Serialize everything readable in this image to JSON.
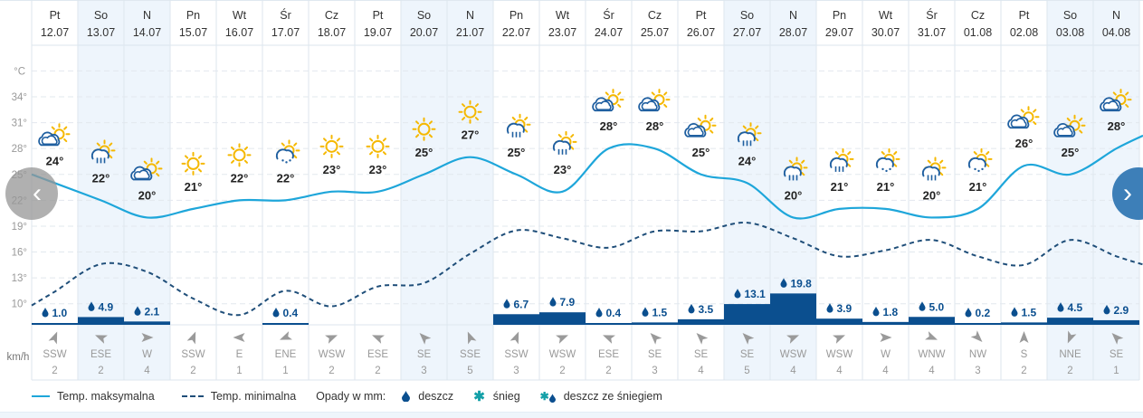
{
  "days": [
    {
      "dow": "Pt",
      "date": "12.07",
      "max": 24,
      "min": 11.4,
      "icon": "partly-cloudy",
      "precip": 1.0,
      "wind_dir": "SSW",
      "wind_speed": 2,
      "weekend": false
    },
    {
      "dow": "So",
      "date": "13.07",
      "max": 22,
      "min": 14.6,
      "icon": "rain-sun",
      "precip": 4.9,
      "wind_dir": "ESE",
      "wind_speed": 2,
      "weekend": true
    },
    {
      "dow": "N",
      "date": "14.07",
      "max": 20,
      "min": 13.7,
      "icon": "partly-cloudy",
      "precip": 2.1,
      "wind_dir": "W",
      "wind_speed": 4,
      "weekend": true
    },
    {
      "dow": "Pn",
      "date": "15.07",
      "max": 21,
      "min": 10.6,
      "icon": "sunny",
      "precip": null,
      "wind_dir": "SSW",
      "wind_speed": 2,
      "weekend": false
    },
    {
      "dow": "Wt",
      "date": "16.07",
      "max": 22,
      "min": 8.7,
      "icon": "sunny",
      "precip": null,
      "wind_dir": "E",
      "wind_speed": 1,
      "weekend": false
    },
    {
      "dow": "Śr",
      "date": "17.07",
      "max": 22,
      "min": 11.5,
      "icon": "showers-sun",
      "precip": 0.4,
      "wind_dir": "ENE",
      "wind_speed": 1,
      "weekend": false
    },
    {
      "dow": "Cz",
      "date": "18.07",
      "max": 23,
      "min": 9.7,
      "icon": "sunny",
      "precip": null,
      "wind_dir": "WSW",
      "wind_speed": 2,
      "weekend": false
    },
    {
      "dow": "Pt",
      "date": "19.07",
      "max": 23,
      "min": 12.0,
      "icon": "sunny",
      "precip": null,
      "wind_dir": "ESE",
      "wind_speed": 2,
      "weekend": false
    },
    {
      "dow": "So",
      "date": "20.07",
      "max": 25,
      "min": 12.4,
      "icon": "sunny",
      "precip": null,
      "wind_dir": "SE",
      "wind_speed": 3,
      "weekend": true
    },
    {
      "dow": "N",
      "date": "21.07",
      "max": 27,
      "min": 15.8,
      "icon": "sunny",
      "precip": null,
      "wind_dir": "SSE",
      "wind_speed": 5,
      "weekend": true
    },
    {
      "dow": "Pn",
      "date": "22.07",
      "max": 25,
      "min": 18.5,
      "icon": "rain-sun",
      "precip": 6.7,
      "wind_dir": "SSW",
      "wind_speed": 3,
      "weekend": false
    },
    {
      "dow": "Wt",
      "date": "23.07",
      "max": 23,
      "min": 17.6,
      "icon": "rain-sun",
      "precip": 7.9,
      "wind_dir": "WSW",
      "wind_speed": 2,
      "weekend": false
    },
    {
      "dow": "Śr",
      "date": "24.07",
      "max": 28,
      "min": 16.5,
      "icon": "partly-cloudy",
      "precip": 0.4,
      "wind_dir": "ESE",
      "wind_speed": 2,
      "weekend": false
    },
    {
      "dow": "Cz",
      "date": "25.07",
      "max": 28,
      "min": 18.4,
      "icon": "partly-cloudy",
      "precip": 1.5,
      "wind_dir": "SE",
      "wind_speed": 3,
      "weekend": false
    },
    {
      "dow": "Pt",
      "date": "26.07",
      "max": 25,
      "min": 18.4,
      "icon": "partly-cloudy",
      "precip": 3.5,
      "wind_dir": "SE",
      "wind_speed": 4,
      "weekend": false
    },
    {
      "dow": "So",
      "date": "27.07",
      "max": 24,
      "min": 19.4,
      "icon": "rain-sun",
      "precip": 13.1,
      "wind_dir": "SE",
      "wind_speed": 5,
      "weekend": true
    },
    {
      "dow": "N",
      "date": "28.07",
      "max": 20,
      "min": 17.6,
      "icon": "rain-sun",
      "precip": 19.8,
      "wind_dir": "WSW",
      "wind_speed": 4,
      "weekend": true
    },
    {
      "dow": "Pn",
      "date": "29.07",
      "max": 21,
      "min": 15.5,
      "icon": "rain-sun",
      "precip": 3.9,
      "wind_dir": "WSW",
      "wind_speed": 4,
      "weekend": false
    },
    {
      "dow": "Wt",
      "date": "30.07",
      "max": 21,
      "min": 16.2,
      "icon": "showers-sun",
      "precip": 1.8,
      "wind_dir": "W",
      "wind_speed": 4,
      "weekend": false
    },
    {
      "dow": "Śr",
      "date": "31.07",
      "max": 20,
      "min": 17.4,
      "icon": "rain-sun",
      "precip": 5.0,
      "wind_dir": "WNW",
      "wind_speed": 4,
      "weekend": false
    },
    {
      "dow": "Cz",
      "date": "01.08",
      "max": 21,
      "min": 15.5,
      "icon": "showers-sun",
      "precip": 0.2,
      "wind_dir": "NW",
      "wind_speed": 3,
      "weekend": false
    },
    {
      "dow": "Pt",
      "date": "02.08",
      "max": 26,
      "min": 14.5,
      "icon": "partly-cloudy",
      "precip": 1.5,
      "wind_dir": "S",
      "wind_speed": 2,
      "weekend": false
    },
    {
      "dow": "So",
      "date": "03.08",
      "max": 25,
      "min": 17.4,
      "icon": "partly-cloudy",
      "precip": 4.5,
      "wind_dir": "NNE",
      "wind_speed": 2,
      "weekend": true
    },
    {
      "dow": "N",
      "date": "04.08",
      "max": 28,
      "min": 15.5,
      "icon": "partly-cloudy",
      "precip": 2.9,
      "wind_dir": "SE",
      "wind_speed": 1,
      "weekend": true
    }
  ],
  "chart_data": {
    "type": "line",
    "x": [
      "12.07",
      "13.07",
      "14.07",
      "15.07",
      "16.07",
      "17.07",
      "18.07",
      "19.07",
      "20.07",
      "21.07",
      "22.07",
      "23.07",
      "24.07",
      "25.07",
      "26.07",
      "27.07",
      "28.07",
      "29.07",
      "30.07",
      "31.07",
      "01.08",
      "02.08",
      "03.08",
      "04.08"
    ],
    "series": [
      {
        "name": "Temp. maksymalna",
        "values": [
          24,
          22,
          20,
          21,
          22,
          22,
          23,
          23,
          25,
          27,
          25,
          23,
          28,
          28,
          25,
          24,
          20,
          21,
          21,
          20,
          21,
          26,
          25,
          28
        ]
      },
      {
        "name": "Temp. minimalna",
        "values": [
          11.4,
          14.6,
          13.7,
          10.6,
          8.7,
          11.5,
          9.7,
          12.0,
          12.4,
          15.8,
          18.5,
          17.6,
          16.5,
          18.4,
          18.4,
          19.4,
          17.6,
          15.5,
          16.2,
          17.4,
          15.5,
          14.5,
          17.4,
          15.5
        ]
      }
    ],
    "precip_mm": [
      1.0,
      4.9,
      2.1,
      null,
      null,
      0.4,
      null,
      null,
      null,
      null,
      6.7,
      7.9,
      0.4,
      1.5,
      3.5,
      13.1,
      19.8,
      3.9,
      1.8,
      5.0,
      0.2,
      1.5,
      4.5,
      2.9
    ],
    "y_unit": "°C",
    "y_ticks": [
      "34°",
      "31°",
      "28°",
      "25°",
      "22°",
      "19°",
      "16°",
      "13°",
      "10°"
    ],
    "y_tick_values": [
      34,
      31,
      28,
      25,
      22,
      19,
      16,
      13,
      10
    ],
    "ylim": [
      7,
      37
    ],
    "grid": true,
    "legend_position": "bottom-left"
  },
  "colors": {
    "max": "#1ea6da",
    "min": "#1f4e79",
    "precip": "#0b4f8f",
    "weekend": "#eef5fc",
    "wind": "#999999",
    "sun": "#f5b800",
    "cloud": "#1f5fa0"
  },
  "wind_unit": "km/h",
  "legend": {
    "max": "Temp. maksymalna",
    "min": "Temp. minimalna",
    "precip_title": "Opady w mm:",
    "rain": "deszcz",
    "snow": "śnieg",
    "sleet": "deszcz ze śniegiem"
  },
  "nav": {
    "prev": "‹",
    "next": "›"
  }
}
